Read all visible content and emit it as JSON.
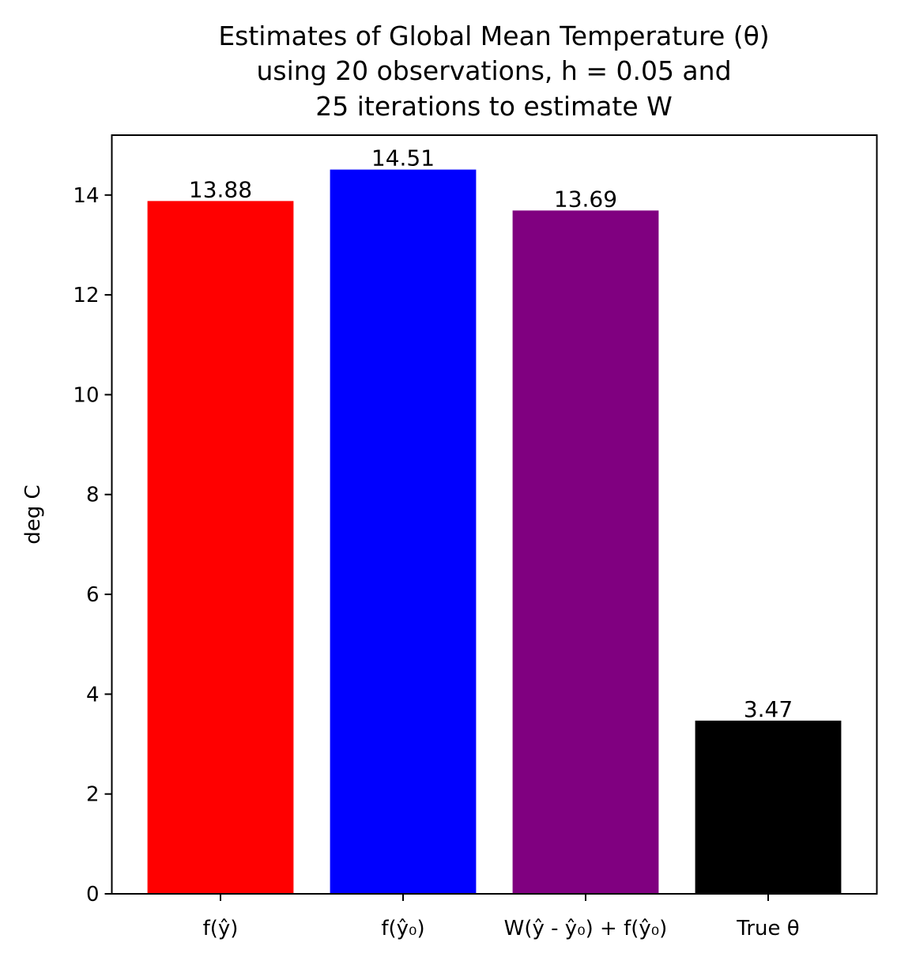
{
  "chart_data": {
    "type": "bar",
    "title_lines": [
      "Estimates of Global Mean Temperature (θ)",
      "using 20 observations, h = 0.05 and",
      "25 iterations to estimate W"
    ],
    "xlabel": "",
    "ylabel": "deg C",
    "ylim": [
      0,
      15.2
    ],
    "yticks": [
      0,
      2,
      4,
      6,
      8,
      10,
      12,
      14
    ],
    "grid": false,
    "categories": [
      "f(ŷ)",
      "f(ŷ₀)",
      "W(ŷ - ŷ₀) + f(ŷ₀)",
      "True θ"
    ],
    "values": [
      13.88,
      14.51,
      13.69,
      3.47
    ],
    "value_labels": [
      "13.88",
      "14.51",
      "13.69",
      "3.47"
    ],
    "colors": [
      "#ff0000",
      "#0000ff",
      "#800080",
      "#000000"
    ]
  }
}
